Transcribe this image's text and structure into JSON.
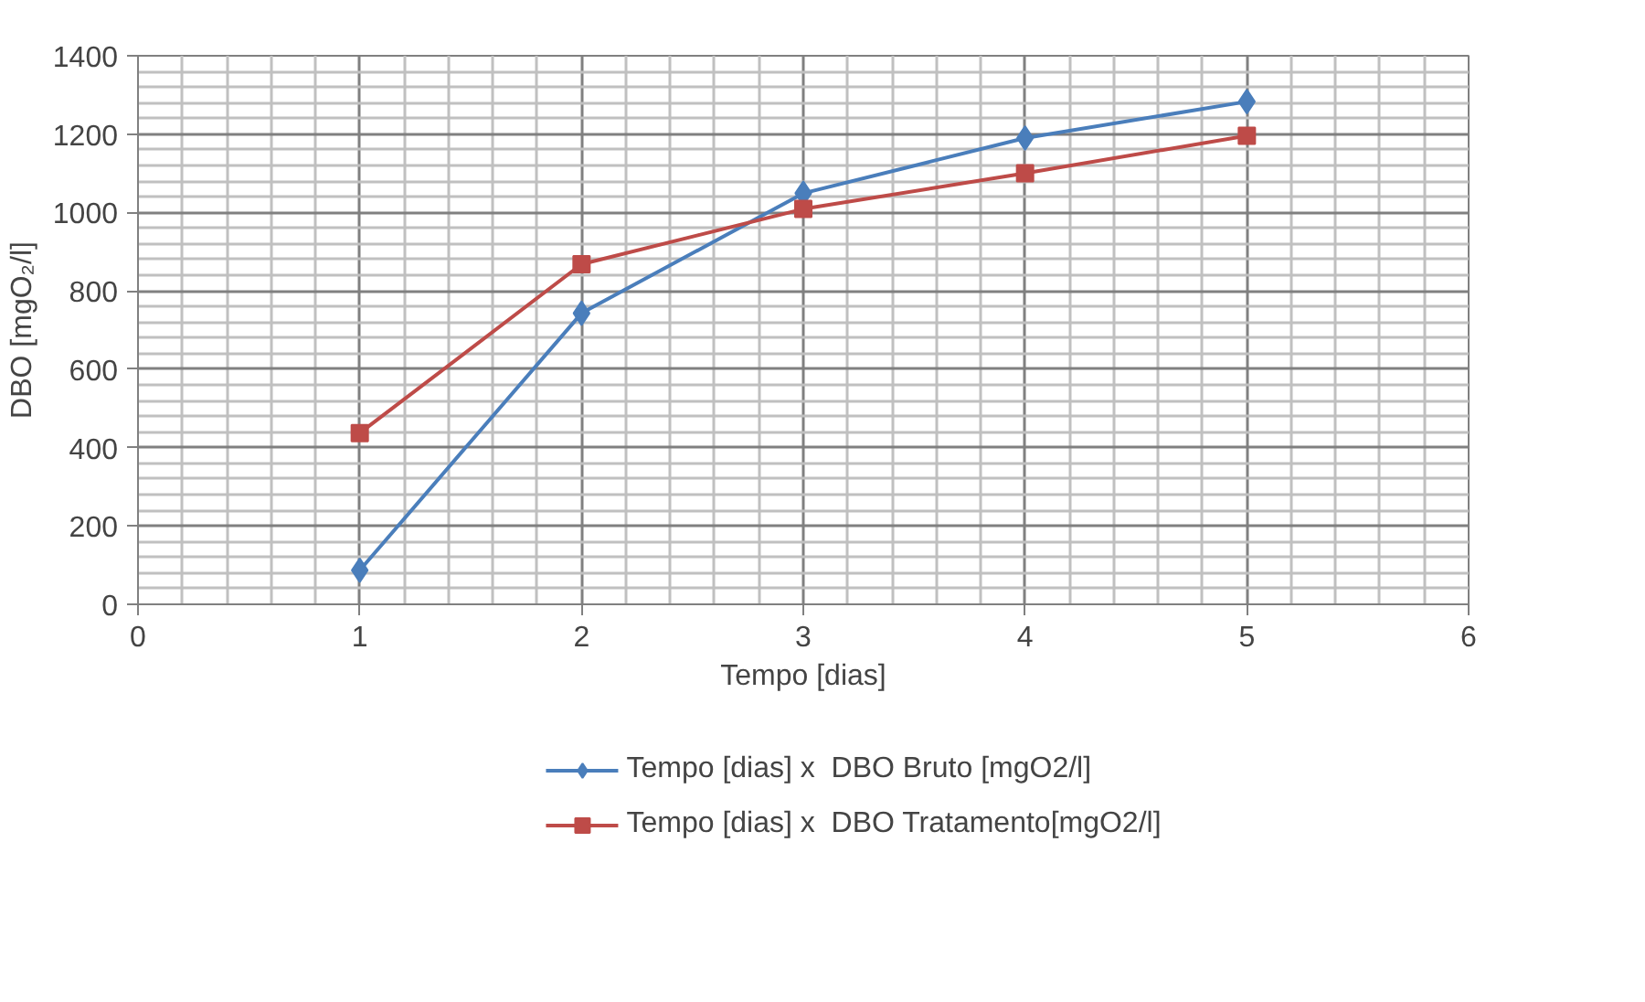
{
  "chart_data": {
    "type": "line",
    "xlabel": "Tempo [dias]",
    "ylabel": "DBO [mgO₂/l]",
    "x": [
      1,
      2,
      3,
      4,
      5
    ],
    "series": [
      {
        "name": "Tempo [dias] x  DBO Bruto [mgO2/l]",
        "color": "#4a7ebb",
        "marker": "diamond",
        "values": [
          87,
          743,
          1049,
          1190,
          1283
        ]
      },
      {
        "name": "Tempo [dias] x  DBO Tratamento[mgO2/l]",
        "color": "#be4b48",
        "marker": "square",
        "values": [
          437,
          868,
          1009,
          1100,
          1196
        ]
      }
    ],
    "xlim": [
      0,
      6
    ],
    "xticks": [
      0,
      1,
      2,
      3,
      4,
      5,
      6
    ],
    "ylim": [
      0,
      1400
    ],
    "yticks": [
      0,
      200,
      400,
      600,
      800,
      1000,
      1200,
      1400
    ],
    "grid": true,
    "legend": "bottom",
    "line_style": "solid"
  }
}
